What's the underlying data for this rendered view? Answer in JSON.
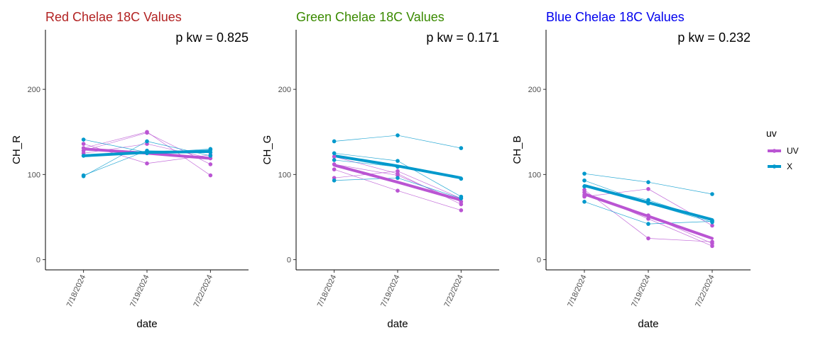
{
  "legend": {
    "title": "uv",
    "placement": "right",
    "items": [
      {
        "label": "UV",
        "color": "#BA55D3"
      },
      {
        "label": "X",
        "color": "#0099CC"
      }
    ]
  },
  "chart_data": [
    {
      "type": "line",
      "title": "Red Chelae 18C Values",
      "title_color": "#B22222",
      "annotation": "p kw = 0.825",
      "xlabel": "date",
      "ylabel": "CH_R",
      "categories": [
        "7/18/2024",
        "7/19/2024",
        "7/22/2024"
      ],
      "ylim": [
        -12,
        270
      ],
      "yticks": [
        0,
        100,
        200
      ],
      "grid": false,
      "series": [
        {
          "name": "UV",
          "values": [
            130,
            125,
            119
          ]
        },
        {
          "name": "X",
          "values": [
            122,
            126,
            127
          ]
        }
      ],
      "individual": [
        {
          "group": "UV",
          "values": [
            131,
            150,
            99
          ]
        },
        {
          "group": "UV",
          "values": [
            136,
            113,
            123
          ]
        },
        {
          "group": "UV",
          "values": [
            128,
            149,
            112
          ]
        },
        {
          "group": "UV",
          "values": [
            125,
            136,
            119
          ]
        },
        {
          "group": "X",
          "values": [
            141,
            126,
            129
          ]
        },
        {
          "group": "X",
          "values": [
            98,
            139,
            122
          ]
        },
        {
          "group": "X",
          "values": [
            122,
            125,
            130
          ]
        },
        {
          "group": "X",
          "values": [
            99,
            128,
            126
          ]
        }
      ]
    },
    {
      "type": "line",
      "title": "Green Chelae 18C Values",
      "title_color": "#3A8A00",
      "annotation": "p kw = 0.171",
      "xlabel": "date",
      "ylabel": "CH_G",
      "categories": [
        "7/18/2024",
        "7/19/2024",
        "7/22/2024"
      ],
      "ylim": [
        -12,
        270
      ],
      "yticks": [
        0,
        100,
        200
      ],
      "grid": false,
      "series": [
        {
          "name": "UV",
          "values": [
            111,
            91,
            70
          ]
        },
        {
          "name": "X",
          "values": [
            122,
            110,
            96
          ]
        }
      ],
      "individual": [
        {
          "group": "UV",
          "values": [
            106,
            81,
            58
          ]
        },
        {
          "group": "UV",
          "values": [
            96,
            104,
            72
          ]
        },
        {
          "group": "UV",
          "values": [
            121,
            101,
            65
          ]
        },
        {
          "group": "UV",
          "values": [
            112,
            99,
            68
          ]
        },
        {
          "group": "X",
          "values": [
            139,
            146,
            131
          ]
        },
        {
          "group": "X",
          "values": [
            93,
            96,
            72
          ]
        },
        {
          "group": "X",
          "values": [
            125,
            116,
            74
          ]
        },
        {
          "group": "X",
          "values": [
            117,
            109,
            95
          ]
        }
      ]
    },
    {
      "type": "line",
      "title": "Blue Chelae 18C Values",
      "title_color": "#0000EE",
      "annotation": "p kw = 0.232",
      "xlabel": "date",
      "ylabel": "CH_B",
      "categories": [
        "7/18/2024",
        "7/19/2024",
        "7/22/2024"
      ],
      "ylim": [
        -12,
        270
      ],
      "yticks": [
        0,
        100,
        200
      ],
      "grid": false,
      "series": [
        {
          "name": "UV",
          "values": [
            77,
            51,
            25
          ]
        },
        {
          "name": "X",
          "values": [
            87,
            67,
            47
          ]
        }
      ],
      "individual": [
        {
          "group": "UV",
          "values": [
            82,
            25,
            21
          ]
        },
        {
          "group": "UV",
          "values": [
            74,
            83,
            40
          ]
        },
        {
          "group": "UV",
          "values": [
            79,
            48,
            16
          ]
        },
        {
          "group": "UV",
          "values": [
            76,
            52,
            19
          ]
        },
        {
          "group": "X",
          "values": [
            101,
            91,
            77
          ]
        },
        {
          "group": "X",
          "values": [
            68,
            42,
            45
          ]
        },
        {
          "group": "X",
          "values": [
            93,
            66,
            44
          ]
        },
        {
          "group": "X",
          "values": [
            86,
            70,
            46
          ]
        }
      ]
    }
  ]
}
